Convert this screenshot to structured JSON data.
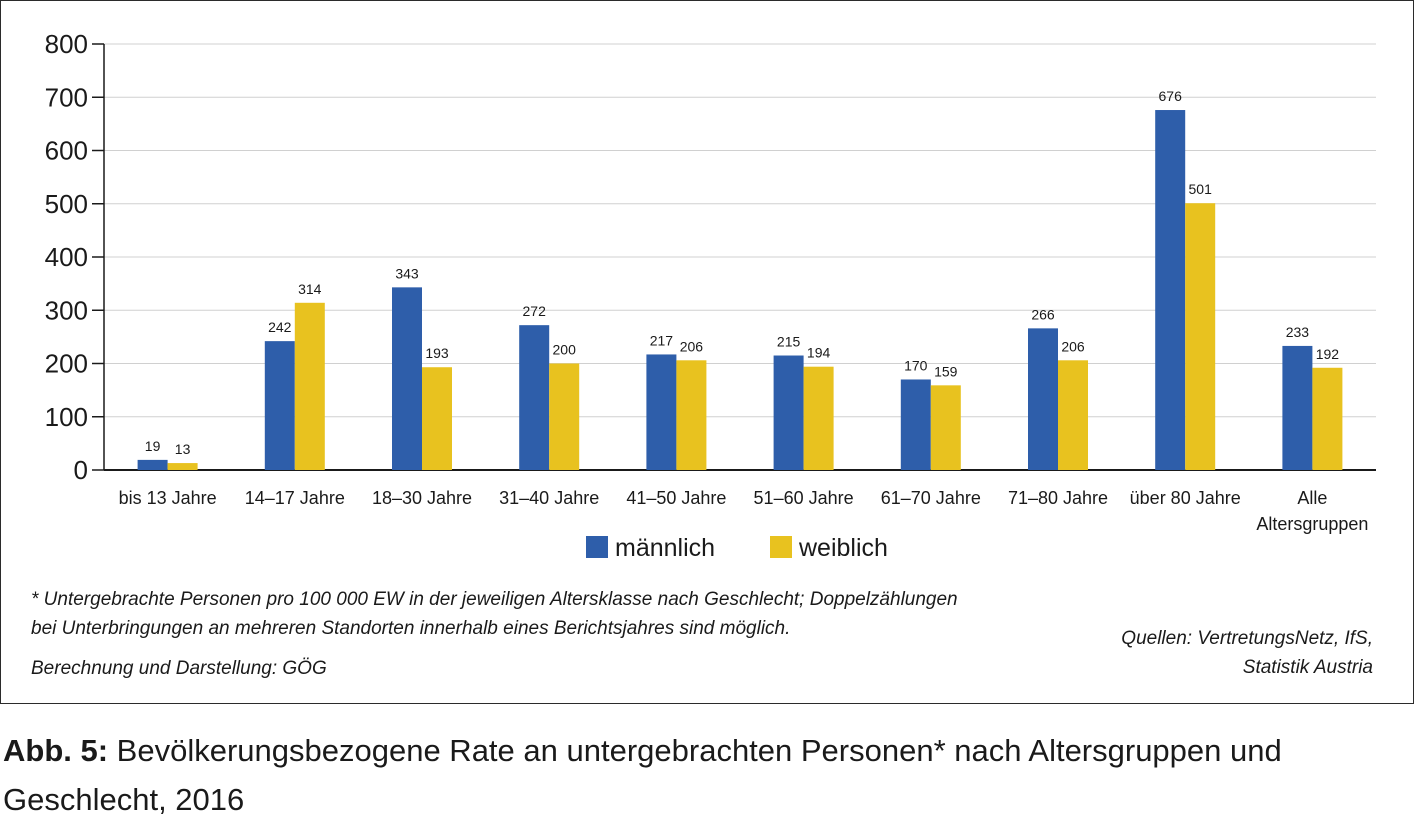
{
  "chart_data": {
    "type": "bar",
    "categories": [
      "bis 13 Jahre",
      "14–17 Jahre",
      "18–30 Jahre",
      "31–40 Jahre",
      "41–50 Jahre",
      "51–60 Jahre",
      "61–70 Jahre",
      "71–80 Jahre",
      "über 80 Jahre",
      "Alle Altersgruppen"
    ],
    "series": [
      {
        "name": "männlich",
        "color": "#2e5eaa",
        "values": [
          19,
          242,
          343,
          272,
          217,
          215,
          170,
          266,
          676,
          233
        ]
      },
      {
        "name": "weiblich",
        "color": "#e8c21f",
        "values": [
          13,
          314,
          193,
          200,
          206,
          194,
          159,
          206,
          501,
          192
        ]
      }
    ],
    "ylim": [
      0,
      800
    ],
    "yticks": [
      0,
      100,
      200,
      300,
      400,
      500,
      600,
      700,
      800
    ],
    "grid": true,
    "legend": "bottom-center"
  },
  "notes": {
    "line1": "* Untergebrachte Personen pro 100 000 EW in der jeweiligen Altersklasse nach Geschlecht; Doppelzählungen",
    "line2": "bei Unterbringungen an mehreren Standorten innerhalb eines Berichtsjahres sind möglich.",
    "line3": "Berechnung und Darstellung: GÖG",
    "source1": "Quellen: VertretungsNetz, IfS,",
    "source2": "Statistik Austria"
  },
  "caption": {
    "label": "Abb. 5:",
    "text": " Bevölkerungsbezogene Rate an untergebrachten Personen* nach Altersgruppen und Geschlecht, 2016"
  }
}
